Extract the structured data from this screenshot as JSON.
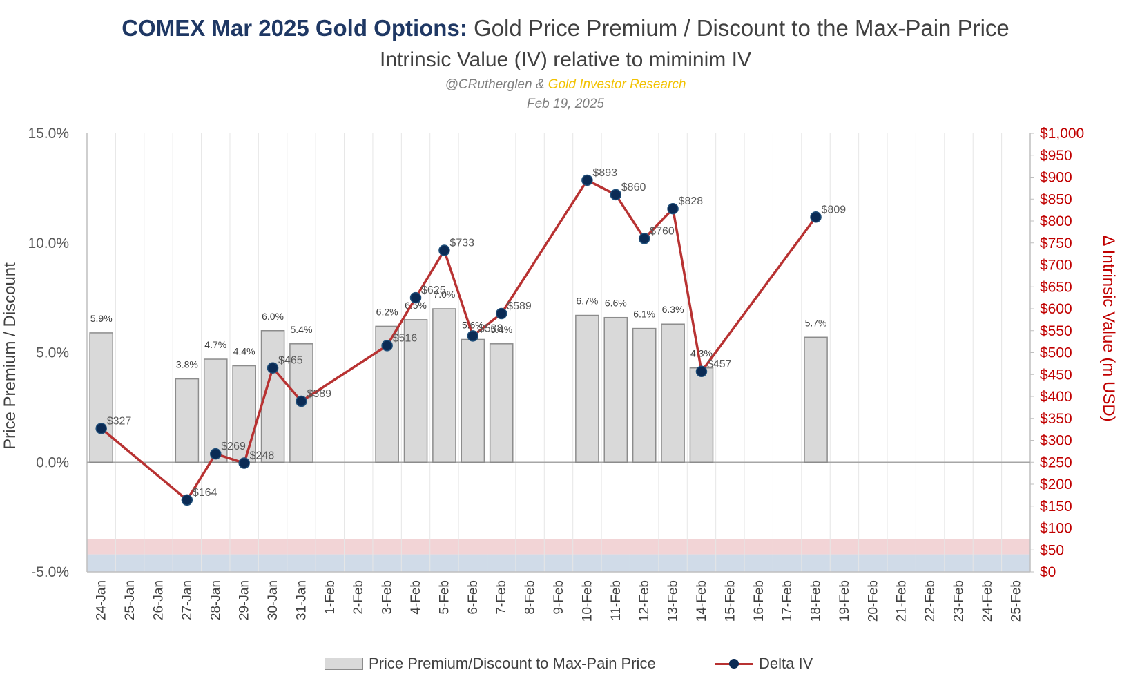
{
  "title": {
    "bold": "COMEX Mar 2025 Gold Options:",
    "rest": " Gold Price Premium / Discount to the Max-Pain Price",
    "subtitle": "Intrinsic Value (IV) relative to miminim IV",
    "credit_handle": "@CRutherglen & ",
    "credit_brand": "Gold Investor Research",
    "date": "Feb 19, 2025"
  },
  "legend": {
    "bars": "Price Premium/Discount to Max-Pain Price",
    "line": "Delta IV"
  },
  "colors": {
    "bar_fill": "#d9d9d9",
    "bar_stroke": "#8c8c8c",
    "line": "#b83232",
    "marker": "#0b2b55",
    "right_axis": "#c00000",
    "band_red": "#f2d4d6",
    "band_blue": "#d0dbe8"
  },
  "chart_data": {
    "type": "bar",
    "categories": [
      "24-Jan",
      "25-Jan",
      "26-Jan",
      "27-Jan",
      "28-Jan",
      "29-Jan",
      "30-Jan",
      "31-Jan",
      "1-Feb",
      "2-Feb",
      "3-Feb",
      "4-Feb",
      "5-Feb",
      "6-Feb",
      "7-Feb",
      "8-Feb",
      "9-Feb",
      "10-Feb",
      "11-Feb",
      "12-Feb",
      "13-Feb",
      "14-Feb",
      "15-Feb",
      "16-Feb",
      "17-Feb",
      "18-Feb",
      "19-Feb",
      "20-Feb",
      "21-Feb",
      "22-Feb",
      "23-Feb",
      "24-Feb",
      "25-Feb"
    ],
    "series": [
      {
        "name": "Price Premium/Discount to Max-Pain Price",
        "axis": "left",
        "values": [
          5.9,
          null,
          null,
          3.8,
          4.7,
          4.4,
          6.0,
          5.4,
          null,
          null,
          6.2,
          6.5,
          7.0,
          5.6,
          5.4,
          null,
          null,
          6.7,
          6.6,
          6.1,
          6.3,
          4.3,
          null,
          null,
          null,
          5.7,
          null,
          null,
          null,
          null,
          null,
          null,
          null
        ],
        "labels": [
          "5.9%",
          null,
          null,
          "3.8%",
          "4.7%",
          "4.4%",
          "6.0%",
          "5.4%",
          null,
          null,
          "6.2%",
          "6.5%",
          "7.0%",
          "5.6%",
          "5.4%",
          null,
          null,
          "6.7%",
          "6.6%",
          "6.1%",
          "6.3%",
          "4.3%",
          null,
          null,
          null,
          "5.7%",
          null,
          null,
          null,
          null,
          null,
          null,
          null
        ]
      },
      {
        "name": "Delta IV",
        "type": "line",
        "axis": "right",
        "values": [
          327,
          null,
          null,
          164,
          269,
          248,
          465,
          389,
          null,
          null,
          516,
          625,
          733,
          538,
          589,
          null,
          null,
          893,
          860,
          760,
          828,
          457,
          null,
          null,
          null,
          809,
          null,
          null,
          null,
          null,
          null,
          null,
          null
        ],
        "labels": [
          "$327",
          null,
          null,
          "$164",
          "$269",
          "$248",
          "$465",
          "$389",
          null,
          null,
          "$516",
          "$625",
          "$733",
          "$538",
          "$589",
          null,
          null,
          "$893",
          "$860",
          "$760",
          "$828",
          "$457",
          null,
          null,
          null,
          "$809",
          null,
          null,
          null,
          null,
          null,
          null,
          null
        ]
      }
    ],
    "ylabel": "Price Premium / Discount",
    "y2label": "Δ Intrinsic Value (m USD)",
    "ylim": [
      -5,
      15
    ],
    "y2lim": [
      0,
      1000
    ],
    "yticks": [
      "15.0%",
      "10.0%",
      "5.0%",
      "0.0%",
      "-5.0%"
    ],
    "y2ticks": [
      "$1,000",
      "$950",
      "$900",
      "$850",
      "$800",
      "$750",
      "$700",
      "$650",
      "$600",
      "$550",
      "$500",
      "$450",
      "$400",
      "$350",
      "$300",
      "$250",
      "$200",
      "$150",
      "$100",
      "$50",
      "$0"
    ],
    "bands": [
      {
        "from": 40,
        "to": 75,
        "color": "#f2d4d6"
      },
      {
        "from": 0,
        "to": 40,
        "color": "#d0dbe8"
      }
    ],
    "grid": "vertical",
    "legend_position": "bottom"
  }
}
